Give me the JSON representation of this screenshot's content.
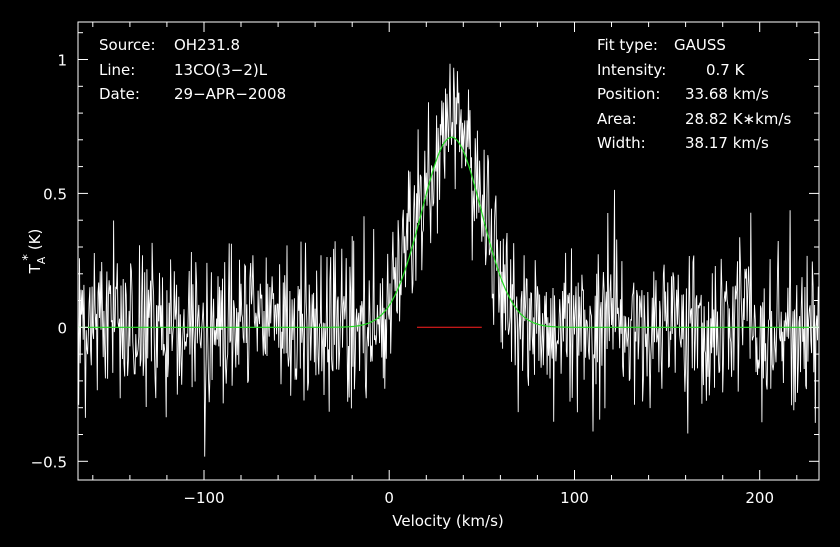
{
  "chart_data": {
    "type": "line",
    "xlabel": "Velocity (km/s)",
    "ylabel": "T_A^* (K)",
    "ylabel_main": "T",
    "ylabel_sub": "A",
    "ylabel_sup": "*",
    "ylabel_unit": "(K)",
    "xlim": [
      -168,
      232
    ],
    "ylim": [
      -0.57,
      1.14
    ],
    "x_ticks": [
      -100,
      0,
      100,
      200
    ],
    "x_tick_labels": [
      "−100",
      "0",
      "100",
      "200"
    ],
    "y_ticks": [
      -0.5,
      0,
      0.5,
      1
    ],
    "y_tick_labels": [
      "−0.5",
      "0",
      "0.5",
      "1"
    ],
    "grid": false,
    "header_left": [
      {
        "key": "Source:",
        "value": "OH231.8"
      },
      {
        "key": "Line:",
        "value": "13CO(3−2)L"
      },
      {
        "key": "Date:",
        "value": "29−APR−2008"
      }
    ],
    "header_right": [
      {
        "key": "Fit type:",
        "value": "GAUSS"
      },
      {
        "key": "Intensity:",
        "value": "0.7 K"
      },
      {
        "key": "Position:",
        "value": "33.68 km/s"
      },
      {
        "key": "Area:",
        "value": "28.82 K∗km/s"
      },
      {
        "key": "Width:",
        "value": "38.17 km/s"
      }
    ],
    "fit": {
      "type": "GAUSS",
      "amplitude": 0.71,
      "center": 33.68,
      "fwhm": 38.17
    },
    "baseline": {
      "y": 0,
      "x_range": [
        15,
        50
      ]
    },
    "series": [
      {
        "label": "spectrum",
        "color": "#ffffff",
        "noise_rms": 0.15,
        "x_step": 0.4,
        "x_range": [
          -168,
          232
        ]
      },
      {
        "label": "gaussian-fit",
        "color": "#22dd22"
      }
    ]
  },
  "colors": {
    "background": "#000000",
    "frame": "#ffffff",
    "spectrum": "#ffffff",
    "fit": "#22dd22",
    "baseline": "#ff2020"
  }
}
